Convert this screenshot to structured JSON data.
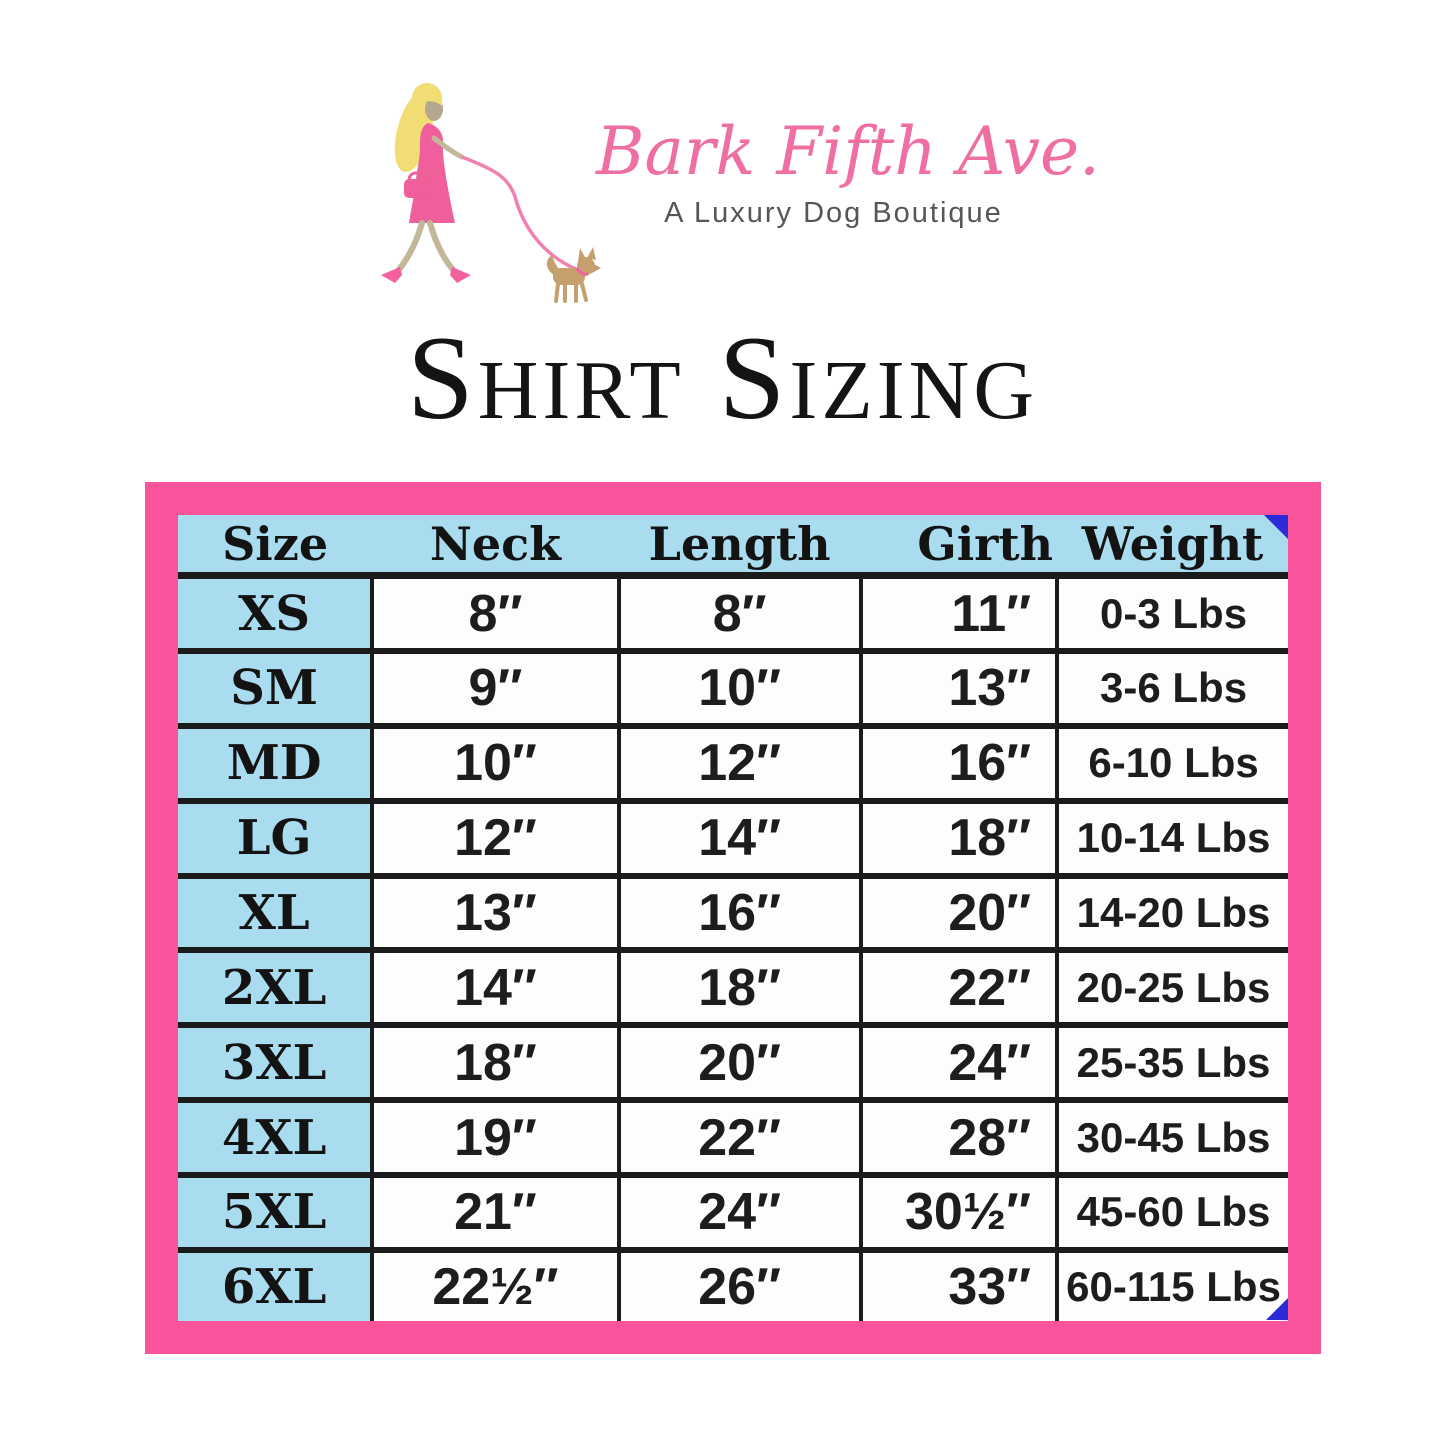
{
  "logo": {
    "brand": "Bark Fifth Ave.",
    "tagline": "A Luxury Dog Boutique"
  },
  "title": "Shirt Sizing",
  "table": {
    "columns": [
      "Size",
      "Neck",
      "Length",
      "Girth",
      "Weight"
    ],
    "rows": [
      [
        "XS",
        "8″",
        "8″",
        "11″",
        "0-3 Lbs"
      ],
      [
        "SM",
        "9″",
        "10″",
        "13″",
        "3-6 Lbs"
      ],
      [
        "MD",
        "10″",
        "12″",
        "16″",
        "6-10 Lbs"
      ],
      [
        "LG",
        "12″",
        "14″",
        "18″",
        "10-14 Lbs"
      ],
      [
        "XL",
        "13″",
        "16″",
        "20″",
        "14-20 Lbs"
      ],
      [
        "2XL",
        "14″",
        "18″",
        "22″",
        "20-25 Lbs"
      ],
      [
        "3XL",
        "18″",
        "20″",
        "24″",
        "25-35 Lbs"
      ],
      [
        "4XL",
        "19″",
        "22″",
        "28″",
        "30-45 Lbs"
      ],
      [
        "5XL",
        "21″",
        "24″",
        "30½″",
        "45-60 Lbs"
      ],
      [
        "6XL",
        "22½″",
        "26″",
        "33″",
        "60-115 Lbs"
      ]
    ]
  },
  "icons": {
    "logo_illustration": "woman-walking-dog-icon",
    "fold_top": "fold-corner-icon",
    "fold_bottom": "fold-corner-icon"
  },
  "colors": {
    "frame_pink": "#f9549b",
    "cell_blue": "#a9dcee",
    "grid_black": "#1b1b1b",
    "fold_blue": "#2b2bd8",
    "brand_pink": "#f06fa2",
    "tagline_gray": "#55565a"
  }
}
